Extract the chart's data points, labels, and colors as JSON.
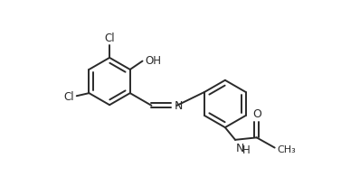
{
  "bg_color": "#ffffff",
  "line_color": "#2a2a2a",
  "line_width": 1.4,
  "font_size": 8.5,
  "figsize": [
    3.98,
    2.07
  ],
  "dpi": 100,
  "xlim": [
    0.0,
    5.2
  ],
  "ylim": [
    -0.5,
    2.8
  ]
}
